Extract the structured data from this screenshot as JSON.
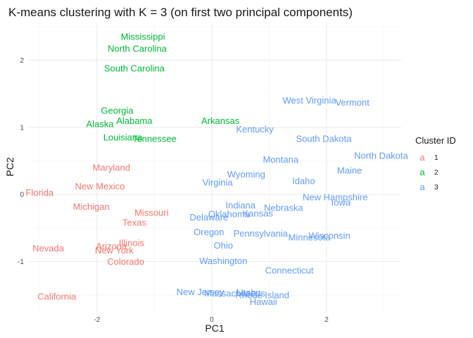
{
  "chart_data": {
    "type": "scatter",
    "title": "K-means clustering with K = 3 (on first two principal components)",
    "xlabel": "PC1",
    "ylabel": "PC2",
    "xlim": [
      -3.2,
      3.3
    ],
    "ylim": [
      -1.75,
      2.55
    ],
    "x_ticks": [
      -2,
      0,
      2
    ],
    "y_ticks": [
      -1,
      0,
      1,
      2
    ],
    "grid": true,
    "legend": {
      "title": "Cluster ID",
      "position": "right",
      "key_glyph": "a",
      "entries": [
        {
          "label": "1",
          "color": "#F8766D"
        },
        {
          "label": "2",
          "color": "#00BA38"
        },
        {
          "label": "3",
          "color": "#619CFF"
        }
      ]
    },
    "points": [
      {
        "label": "Mississippi",
        "x": -1.2,
        "y": 2.35,
        "cluster": "2"
      },
      {
        "label": "North Carolina",
        "x": -1.3,
        "y": 2.17,
        "cluster": "2"
      },
      {
        "label": "South Carolina",
        "x": -1.35,
        "y": 1.88,
        "cluster": "2"
      },
      {
        "label": "Georgia",
        "x": -1.65,
        "y": 1.25,
        "cluster": "2"
      },
      {
        "label": "Alabama",
        "x": -1.35,
        "y": 1.1,
        "cluster": "2"
      },
      {
        "label": "Alaska",
        "x": -1.95,
        "y": 1.05,
        "cluster": "2"
      },
      {
        "label": "Arkansas",
        "x": 0.15,
        "y": 1.1,
        "cluster": "2"
      },
      {
        "label": "Louisiana",
        "x": -1.55,
        "y": 0.85,
        "cluster": "2"
      },
      {
        "label": "Tennessee",
        "x": -1.0,
        "y": 0.83,
        "cluster": "2"
      },
      {
        "label": "Maryland",
        "x": -1.75,
        "y": 0.4,
        "cluster": "1"
      },
      {
        "label": "New Mexico",
        "x": -1.95,
        "y": 0.12,
        "cluster": "1"
      },
      {
        "label": "Florida",
        "x": -3.0,
        "y": 0.03,
        "cluster": "1"
      },
      {
        "label": "Michigan",
        "x": -2.1,
        "y": -0.18,
        "cluster": "1"
      },
      {
        "label": "Missouri",
        "x": -1.05,
        "y": -0.27,
        "cluster": "1"
      },
      {
        "label": "Texas",
        "x": -1.35,
        "y": -0.42,
        "cluster": "1"
      },
      {
        "label": "Illinois",
        "x": -1.4,
        "y": -0.72,
        "cluster": "1"
      },
      {
        "label": "Arizona",
        "x": -1.75,
        "y": -0.77,
        "cluster": "1"
      },
      {
        "label": "Nevada",
        "x": -2.85,
        "y": -0.8,
        "cluster": "1"
      },
      {
        "label": "New York",
        "x": -1.7,
        "y": -0.83,
        "cluster": "1"
      },
      {
        "label": "Colorado",
        "x": -1.5,
        "y": -1.0,
        "cluster": "1"
      },
      {
        "label": "California",
        "x": -2.7,
        "y": -1.52,
        "cluster": "1"
      },
      {
        "label": "West Virginia",
        "x": 1.7,
        "y": 1.4,
        "cluster": "3"
      },
      {
        "label": "Vermont",
        "x": 2.45,
        "y": 1.37,
        "cluster": "3"
      },
      {
        "label": "Kentucky",
        "x": 0.75,
        "y": 0.97,
        "cluster": "3"
      },
      {
        "label": "South Dakota",
        "x": 1.95,
        "y": 0.83,
        "cluster": "3"
      },
      {
        "label": "North Dakota",
        "x": 2.95,
        "y": 0.58,
        "cluster": "3"
      },
      {
        "label": "Montana",
        "x": 1.2,
        "y": 0.52,
        "cluster": "3"
      },
      {
        "label": "Maine",
        "x": 2.4,
        "y": 0.36,
        "cluster": "3"
      },
      {
        "label": "Wyoming",
        "x": 0.6,
        "y": 0.3,
        "cluster": "3"
      },
      {
        "label": "Idaho",
        "x": 1.6,
        "y": 0.2,
        "cluster": "3"
      },
      {
        "label": "Virginia",
        "x": 0.1,
        "y": 0.18,
        "cluster": "3"
      },
      {
        "label": "New Hampshire",
        "x": 2.15,
        "y": -0.04,
        "cluster": "3"
      },
      {
        "label": "Iowa",
        "x": 2.25,
        "y": -0.12,
        "cluster": "3"
      },
      {
        "label": "Nebraska",
        "x": 1.25,
        "y": -0.2,
        "cluster": "3"
      },
      {
        "label": "Indiana",
        "x": 0.5,
        "y": -0.16,
        "cluster": "3"
      },
      {
        "label": "Kansas",
        "x": 0.8,
        "y": -0.28,
        "cluster": "3"
      },
      {
        "label": "Oklahoma",
        "x": 0.3,
        "y": -0.29,
        "cluster": "3"
      },
      {
        "label": "Delaware",
        "x": -0.05,
        "y": -0.34,
        "cluster": "3"
      },
      {
        "label": "Oregon",
        "x": -0.05,
        "y": -0.56,
        "cluster": "3"
      },
      {
        "label": "Pennsylvania",
        "x": 0.85,
        "y": -0.58,
        "cluster": "3"
      },
      {
        "label": "Wisconsin",
        "x": 2.05,
        "y": -0.61,
        "cluster": "3"
      },
      {
        "label": "Minnesota",
        "x": 1.7,
        "y": -0.64,
        "cluster": "3"
      },
      {
        "label": "Ohio",
        "x": 0.2,
        "y": -0.76,
        "cluster": "3"
      },
      {
        "label": "Washington",
        "x": 0.2,
        "y": -0.99,
        "cluster": "3"
      },
      {
        "label": "Connecticut",
        "x": 1.35,
        "y": -1.13,
        "cluster": "3"
      },
      {
        "label": "New Jersey",
        "x": -0.2,
        "y": -1.45,
        "cluster": "3"
      },
      {
        "label": "Massachusetts",
        "x": 0.4,
        "y": -1.47,
        "cluster": "3"
      },
      {
        "label": "Utah",
        "x": 0.6,
        "y": -1.46,
        "cluster": "3"
      },
      {
        "label": "Rhode Island",
        "x": 0.88,
        "y": -1.5,
        "cluster": "3"
      },
      {
        "label": "Hawaii",
        "x": 0.9,
        "y": -1.6,
        "cluster": "3"
      }
    ]
  }
}
